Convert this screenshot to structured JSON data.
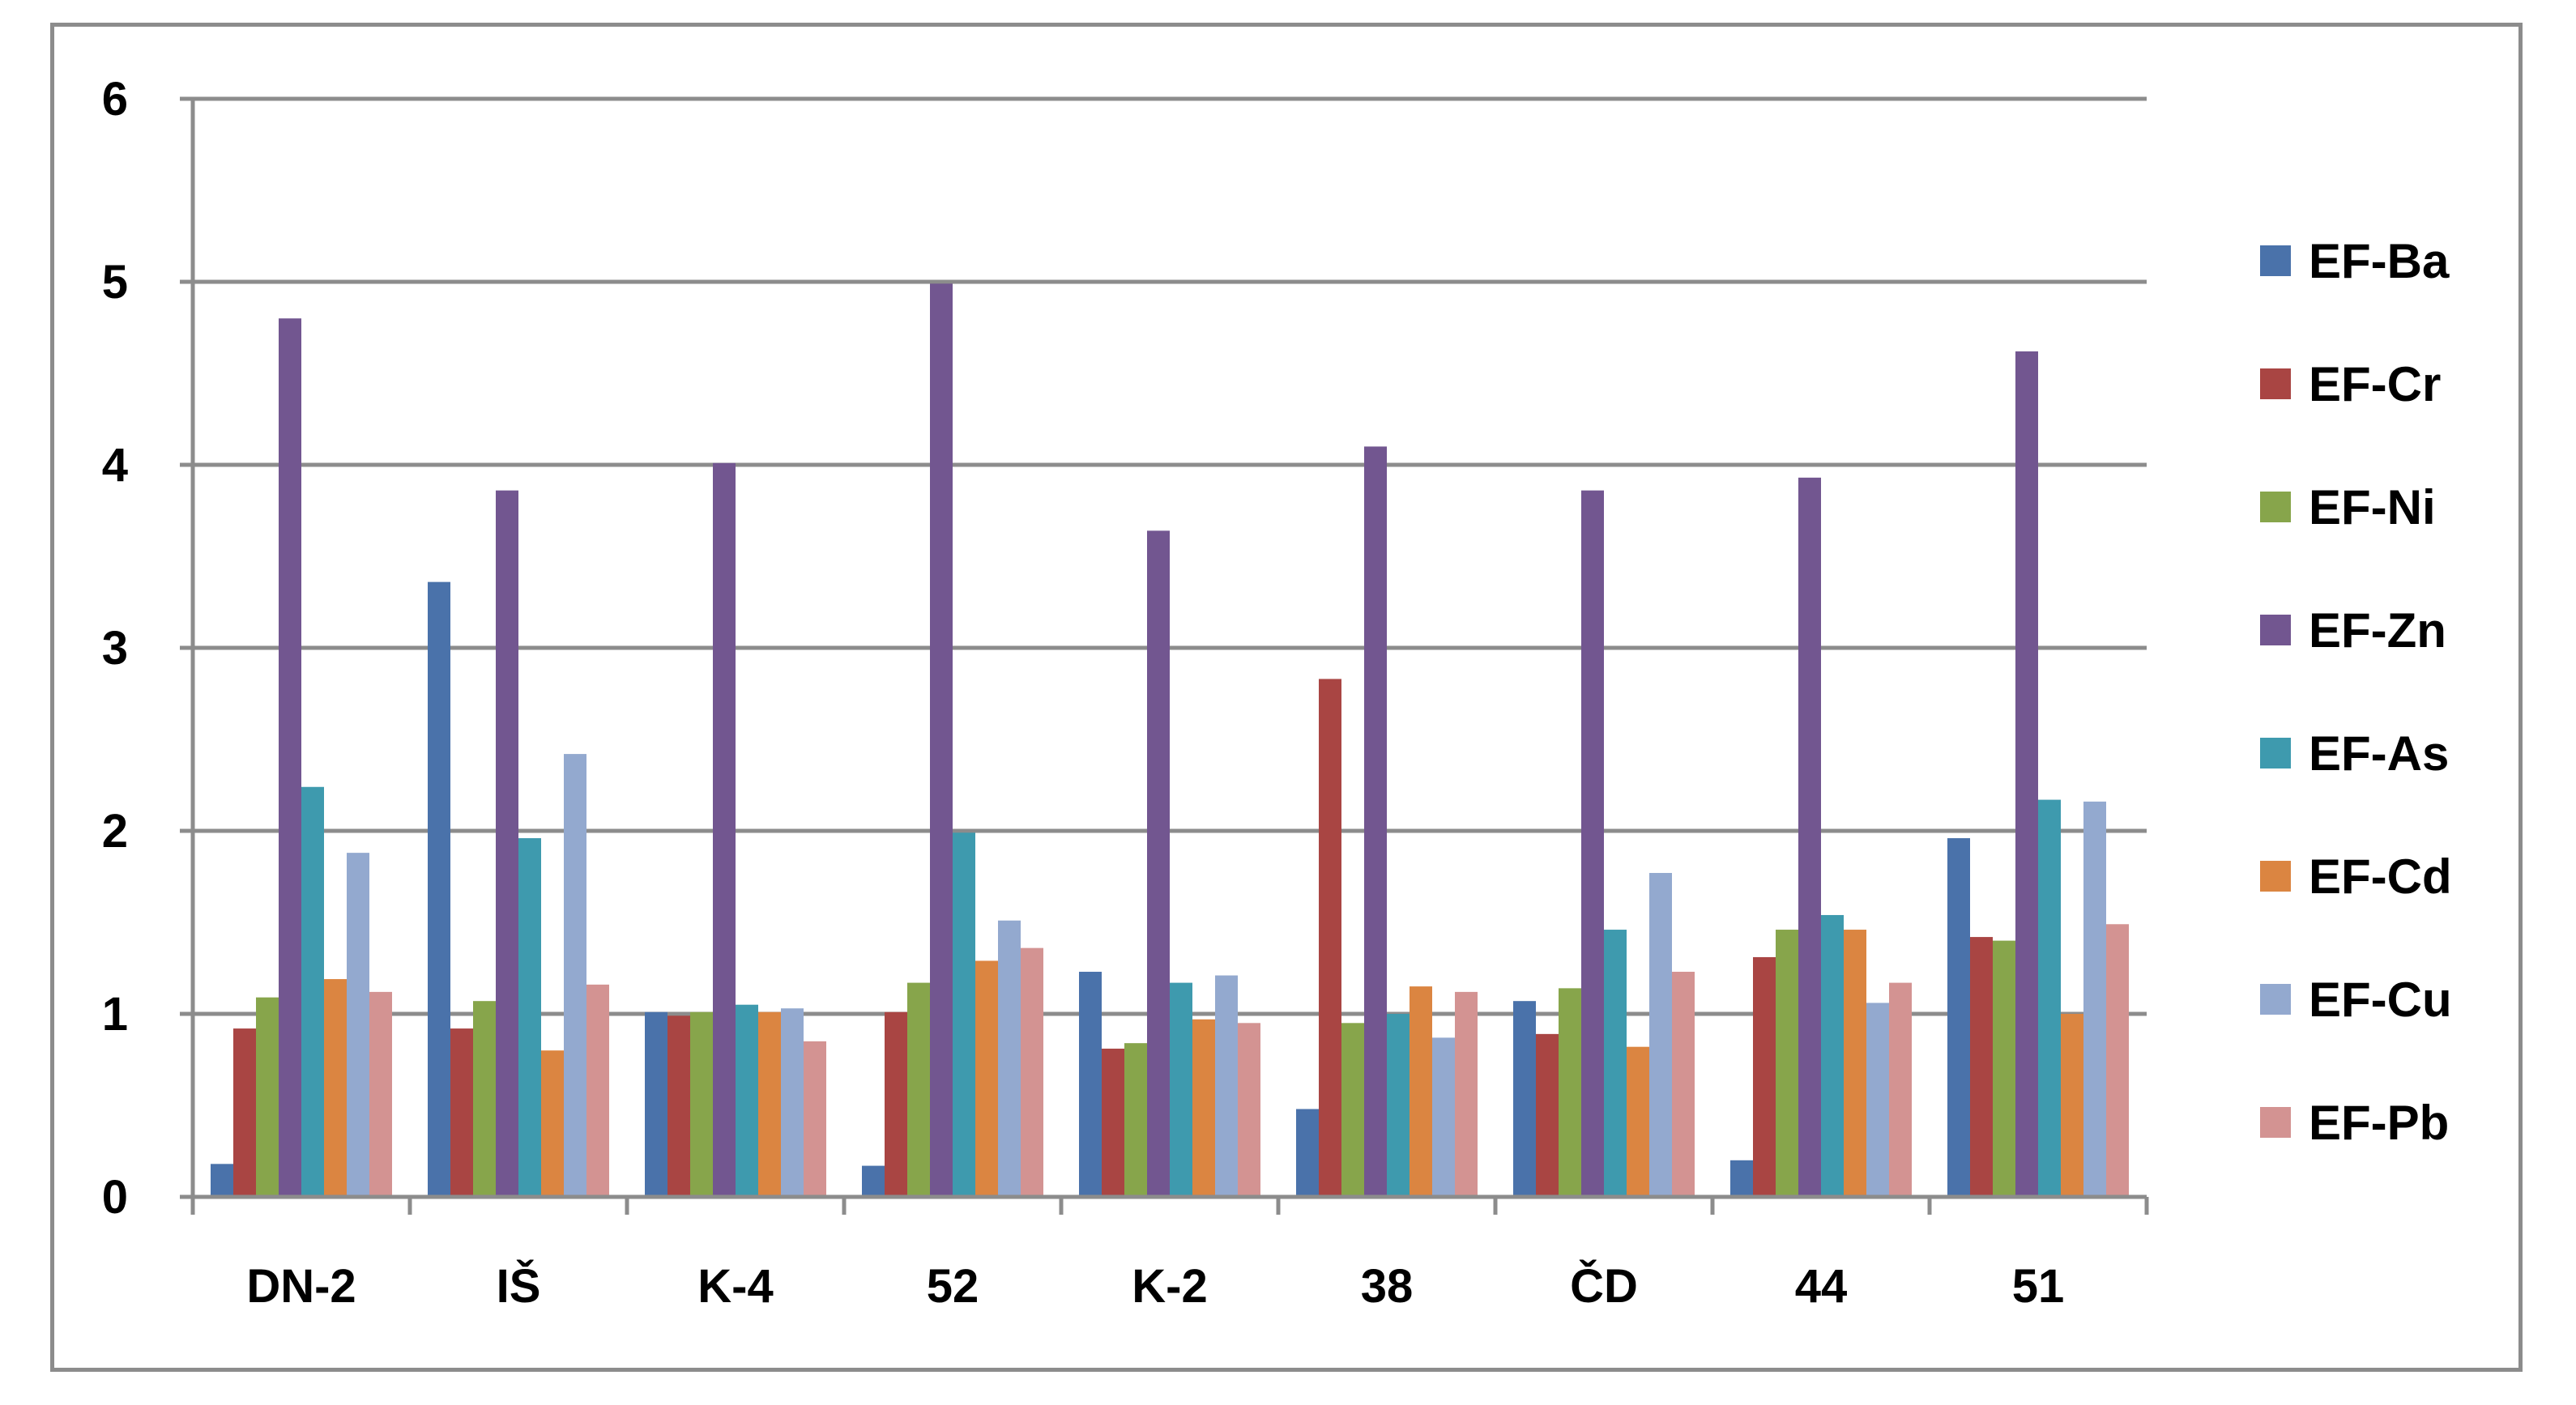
{
  "chart_data": {
    "type": "bar",
    "categories": [
      "DN-2",
      "IŠ",
      "K-4",
      "52",
      "K-2",
      "38",
      "ČD",
      "44",
      "51"
    ],
    "series": [
      {
        "name": "EF-Ba",
        "color": "#4a72aa",
        "values": [
          0.18,
          3.36,
          1.01,
          0.17,
          1.23,
          0.48,
          1.07,
          0.2,
          1.96
        ]
      },
      {
        "name": "EF-Cr",
        "color": "#a94543",
        "values": [
          0.92,
          0.92,
          0.99,
          1.01,
          0.81,
          2.83,
          0.89,
          1.31,
          1.42
        ]
      },
      {
        "name": "EF-Ni",
        "color": "#87a54b",
        "values": [
          1.09,
          1.07,
          1.01,
          1.17,
          0.84,
          0.95,
          1.14,
          1.46,
          1.4
        ]
      },
      {
        "name": "EF-Zn",
        "color": "#725690",
        "values": [
          4.8,
          3.86,
          4.01,
          4.99,
          3.64,
          4.1,
          3.86,
          3.93,
          4.62
        ]
      },
      {
        "name": "EF-As",
        "color": "#3e9aae",
        "values": [
          2.24,
          1.96,
          1.05,
          1.99,
          1.17,
          1.0,
          1.46,
          1.54,
          2.17
        ]
      },
      {
        "name": "EF-Cd",
        "color": "#db8541",
        "values": [
          1.19,
          0.8,
          1.01,
          1.29,
          0.97,
          1.15,
          0.82,
          1.46,
          1.0
        ]
      },
      {
        "name": "EF-Cu",
        "color": "#93a9cf",
        "values": [
          1.88,
          2.42,
          1.03,
          1.51,
          1.21,
          0.87,
          1.77,
          1.06,
          2.16
        ]
      },
      {
        "name": "EF-Pb",
        "color": "#d39392",
        "values": [
          1.12,
          1.16,
          0.85,
          1.36,
          0.95,
          1.12,
          1.23,
          1.17,
          1.49
        ]
      }
    ],
    "ylim": [
      0,
      6
    ],
    "yticks": [
      "0",
      "1",
      "2",
      "3",
      "4",
      "5",
      "6"
    ],
    "grid": true,
    "legend_position": "right",
    "colors": {
      "gridline": "#8c8c8c",
      "axis": "#8c8c8c",
      "frame": "#8c8c8c"
    }
  }
}
